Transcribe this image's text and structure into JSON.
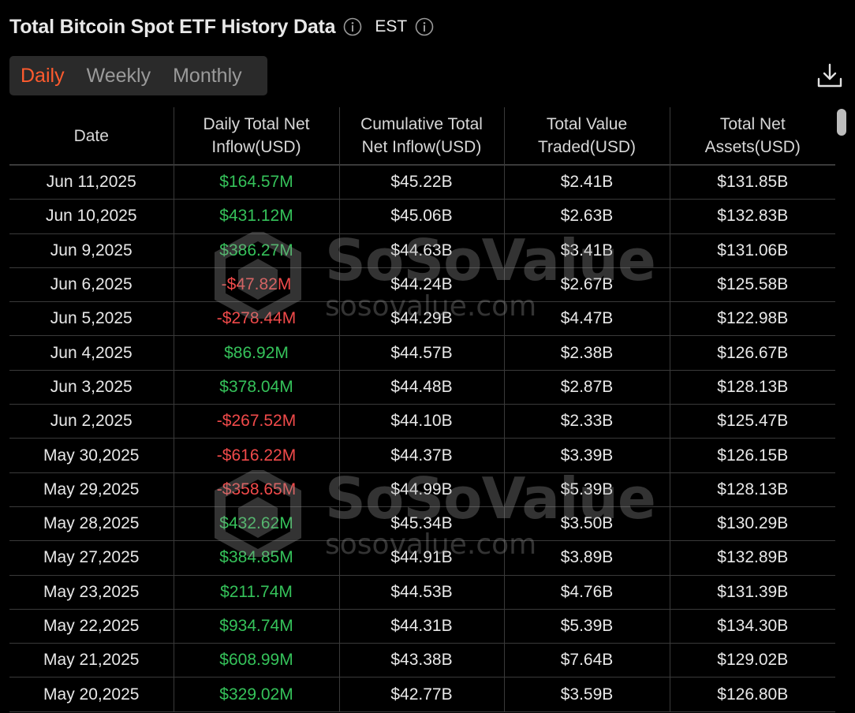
{
  "header": {
    "title": "Total Bitcoin Spot ETF History Data",
    "timezone": "EST"
  },
  "tabs": [
    {
      "label": "Daily",
      "active": true
    },
    {
      "label": "Weekly",
      "active": false
    },
    {
      "label": "Monthly",
      "active": false
    }
  ],
  "table": {
    "headers": [
      {
        "line1": "Date",
        "line2": ""
      },
      {
        "line1": "Daily Total Net",
        "line2": "Inflow(USD)"
      },
      {
        "line1": "Cumulative Total",
        "line2": "Net Inflow(USD)"
      },
      {
        "line1": "Total Value",
        "line2": "Traded(USD)"
      },
      {
        "line1": "Total Net",
        "line2": "Assets(USD)"
      }
    ],
    "rows": [
      {
        "date": "Jun 11,2025",
        "inflow": "$164.57M",
        "trend": "pos",
        "cumulative": "$45.22B",
        "traded": "$2.41B",
        "assets": "$131.85B"
      },
      {
        "date": "Jun 10,2025",
        "inflow": "$431.12M",
        "trend": "pos",
        "cumulative": "$45.06B",
        "traded": "$2.63B",
        "assets": "$132.83B"
      },
      {
        "date": "Jun 9,2025",
        "inflow": "$386.27M",
        "trend": "pos",
        "cumulative": "$44.63B",
        "traded": "$3.41B",
        "assets": "$131.06B"
      },
      {
        "date": "Jun 6,2025",
        "inflow": "-$47.82M",
        "trend": "neg",
        "cumulative": "$44.24B",
        "traded": "$2.67B",
        "assets": "$125.58B"
      },
      {
        "date": "Jun 5,2025",
        "inflow": "-$278.44M",
        "trend": "neg",
        "cumulative": "$44.29B",
        "traded": "$4.47B",
        "assets": "$122.98B"
      },
      {
        "date": "Jun 4,2025",
        "inflow": "$86.92M",
        "trend": "pos",
        "cumulative": "$44.57B",
        "traded": "$2.38B",
        "assets": "$126.67B"
      },
      {
        "date": "Jun 3,2025",
        "inflow": "$378.04M",
        "trend": "pos",
        "cumulative": "$44.48B",
        "traded": "$2.87B",
        "assets": "$128.13B"
      },
      {
        "date": "Jun 2,2025",
        "inflow": "-$267.52M",
        "trend": "neg",
        "cumulative": "$44.10B",
        "traded": "$2.33B",
        "assets": "$125.47B"
      },
      {
        "date": "May 30,2025",
        "inflow": "-$616.22M",
        "trend": "neg",
        "cumulative": "$44.37B",
        "traded": "$3.39B",
        "assets": "$126.15B"
      },
      {
        "date": "May 29,2025",
        "inflow": "-$358.65M",
        "trend": "neg",
        "cumulative": "$44.99B",
        "traded": "$5.39B",
        "assets": "$128.13B"
      },
      {
        "date": "May 28,2025",
        "inflow": "$432.62M",
        "trend": "pos",
        "cumulative": "$45.34B",
        "traded": "$3.50B",
        "assets": "$130.29B"
      },
      {
        "date": "May 27,2025",
        "inflow": "$384.85M",
        "trend": "pos",
        "cumulative": "$44.91B",
        "traded": "$3.89B",
        "assets": "$132.89B"
      },
      {
        "date": "May 23,2025",
        "inflow": "$211.74M",
        "trend": "pos",
        "cumulative": "$44.53B",
        "traded": "$4.76B",
        "assets": "$131.39B"
      },
      {
        "date": "May 22,2025",
        "inflow": "$934.74M",
        "trend": "pos",
        "cumulative": "$44.31B",
        "traded": "$5.39B",
        "assets": "$134.30B"
      },
      {
        "date": "May 21,2025",
        "inflow": "$608.99M",
        "trend": "pos",
        "cumulative": "$43.38B",
        "traded": "$7.64B",
        "assets": "$129.02B"
      },
      {
        "date": "May 20,2025",
        "inflow": "$329.02M",
        "trend": "pos",
        "cumulative": "$42.77B",
        "traded": "$3.59B",
        "assets": "$126.80B"
      }
    ]
  },
  "watermark": {
    "brand": "SoSoValue",
    "url": "sosovalue.com"
  },
  "icons": {
    "title_info": "info-icon",
    "timezone_info": "info-icon",
    "download": "download-icon",
    "watermark_logo": "cube-logo-icon"
  },
  "colors": {
    "accent": "#ff5b2e",
    "positive": "#35c25a",
    "negative": "#f04a4a",
    "background": "#000000"
  }
}
